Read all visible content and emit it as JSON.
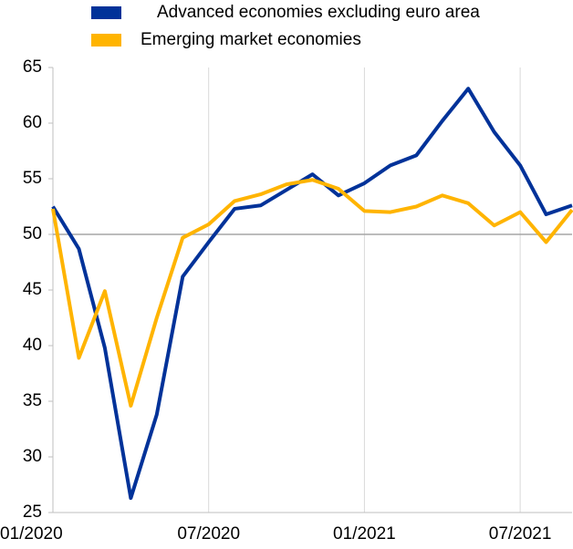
{
  "chart_data": {
    "type": "line",
    "categories": [
      "01/2020",
      null,
      null,
      null,
      null,
      null,
      "07/2020",
      null,
      null,
      null,
      null,
      null,
      "01/2021",
      null,
      null,
      null,
      null,
      null,
      "07/2021",
      null,
      null
    ],
    "series": [
      {
        "name": "Advanced economies excluding euro area",
        "color": "#003299",
        "values": [
          52.5,
          48.7,
          39.8,
          26.3,
          33.8,
          46.2,
          49.3,
          52.3,
          52.6,
          54.0,
          55.4,
          53.5,
          54.6,
          56.2,
          57.1,
          60.2,
          63.1,
          59.2,
          56.2,
          51.8,
          52.6
        ]
      },
      {
        "name": "Emerging market economies",
        "color": "#ffb400",
        "values": [
          52.3,
          38.9,
          44.9,
          34.6,
          42.5,
          49.7,
          50.9,
          53.0,
          53.6,
          54.5,
          54.9,
          54.1,
          52.1,
          52.0,
          52.5,
          53.5,
          52.8,
          50.8,
          52.0,
          49.3,
          52.2
        ]
      }
    ],
    "ylim": [
      25,
      65
    ],
    "yticks": [
      25,
      30,
      35,
      40,
      45,
      50,
      55,
      60,
      65
    ],
    "reference_line": 50,
    "grid": true
  }
}
